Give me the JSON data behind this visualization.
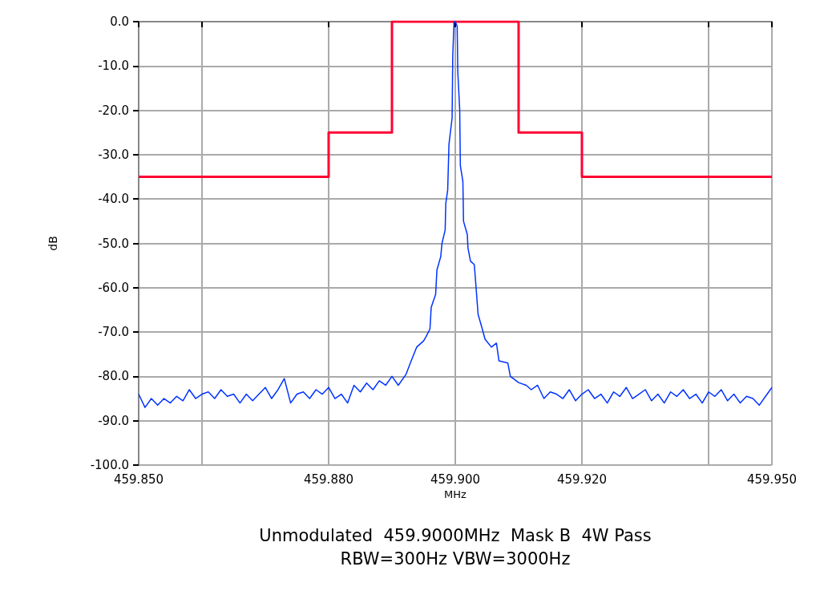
{
  "chart_data": {
    "type": "line",
    "title": "Unmodulated  459.9000MHz  Mask B  4W Pass",
    "subtitle": "RBW=300Hz VBW=3000Hz",
    "xlabel": "MHz",
    "ylabel": "dB",
    "xlim": [
      459.85,
      459.95
    ],
    "ylim": [
      -100,
      0
    ],
    "xticks": [
      {
        "value": 459.85,
        "label": "459.850"
      },
      {
        "value": 459.86,
        "label": null
      },
      {
        "value": 459.88,
        "label": "459.880"
      },
      {
        "value": 459.9,
        "label": "459.900"
      },
      {
        "value": 459.92,
        "label": "459.920"
      },
      {
        "value": 459.94,
        "label": null
      },
      {
        "value": 459.95,
        "label": "459.950"
      }
    ],
    "yticks": [
      {
        "value": 0,
        "label": "0.0"
      },
      {
        "value": -10,
        "label": "-10.0"
      },
      {
        "value": -20,
        "label": "-20.0"
      },
      {
        "value": -30,
        "label": "-30.0"
      },
      {
        "value": -40,
        "label": "-40.0"
      },
      {
        "value": -50,
        "label": "-50.0"
      },
      {
        "value": -60,
        "label": "-60.0"
      },
      {
        "value": -70,
        "label": "-70.0"
      },
      {
        "value": -80,
        "label": "-80.0"
      },
      {
        "value": -90,
        "label": "-90.0"
      },
      {
        "value": -100,
        "label": "-100.0"
      }
    ],
    "grid": true,
    "marker": "none",
    "line_style": "solid",
    "series": [
      {
        "type": "step",
        "color": "#ff0033",
        "x": [
          459.85,
          459.88,
          459.89,
          459.91,
          459.92,
          459.95
        ],
        "values": [
          -35,
          -25,
          0,
          -25,
          -35,
          -35
        ]
      },
      {
        "color": "#0033ff",
        "x": [
          459.85,
          459.851,
          459.852,
          459.853,
          459.854,
          459.855,
          459.856,
          459.857,
          459.858,
          459.859,
          459.86,
          459.861,
          459.862,
          459.863,
          459.864,
          459.865,
          459.866,
          459.867,
          459.868,
          459.869,
          459.87,
          459.871,
          459.872,
          459.873,
          459.874,
          459.875,
          459.876,
          459.877,
          459.878,
          459.879,
          459.88,
          459.881,
          459.882,
          459.883,
          459.884,
          459.885,
          459.886,
          459.887,
          459.888,
          459.889,
          459.89,
          459.891,
          459.8922,
          459.8929,
          459.8939,
          459.895,
          459.8954,
          459.896,
          459.8962,
          459.8969,
          459.8971,
          459.8977,
          459.8979,
          459.8984,
          459.8985,
          459.8988,
          459.899,
          459.8995,
          459.8996,
          459.8998,
          459.9,
          459.9003,
          459.9004,
          459.9007,
          459.9008,
          459.9012,
          459.9013,
          459.9019,
          459.902,
          459.9024,
          459.903,
          459.9032,
          459.9036,
          459.9042,
          459.9047,
          459.9057,
          459.9065,
          459.9069,
          459.9083,
          459.9087,
          459.91,
          459.9112,
          459.912,
          459.913,
          459.914,
          459.915,
          459.916,
          459.917,
          459.918,
          459.919,
          459.92,
          459.921,
          459.922,
          459.923,
          459.924,
          459.925,
          459.926,
          459.927,
          459.928,
          459.929,
          459.93,
          459.931,
          459.932,
          459.933,
          459.934,
          459.935,
          459.936,
          459.937,
          459.938,
          459.939,
          459.94,
          459.941,
          459.942,
          459.943,
          459.944,
          459.945,
          459.946,
          459.947,
          459.948,
          459.949,
          459.95
        ],
        "values": [
          -84,
          -87,
          -85,
          -86.5,
          -85,
          -86,
          -84.5,
          -85.5,
          -83,
          -85,
          -84,
          -83.5,
          -85,
          -83,
          -84.5,
          -84,
          -86,
          -84,
          -85.5,
          -84,
          -82.5,
          -85,
          -83,
          -80.5,
          -86,
          -84,
          -83.5,
          -85,
          -83,
          -84,
          -82.5,
          -85,
          -84,
          -86,
          -82,
          -83.5,
          -81.5,
          -83,
          -81,
          -82,
          -80,
          -82,
          -79.6,
          -77,
          -73.4,
          -72,
          -71,
          -69.3,
          -64.4,
          -61.5,
          -56,
          -53,
          -50,
          -47,
          -41,
          -38,
          -27.7,
          -21.7,
          -7.8,
          0,
          0,
          -1,
          -11.4,
          -19.9,
          -32.5,
          -36,
          -45,
          -48,
          -51,
          -54,
          -54.8,
          -58.4,
          -66,
          -69,
          -71.6,
          -73.4,
          -72.5,
          -76.5,
          -77,
          -80,
          -81.4,
          -82,
          -83,
          -82,
          -85,
          -83.5,
          -84,
          -85,
          -83,
          -85.5,
          -84,
          -83,
          -85,
          -84,
          -86,
          -83.5,
          -84.5,
          -82.5,
          -85,
          -84,
          -83,
          -85.5,
          -84,
          -86,
          -83.5,
          -84.5,
          -83,
          -85,
          -84,
          -86,
          -83.5,
          -84.5,
          -83,
          -85.5,
          -84,
          -86,
          -84.5,
          -85,
          -86.5,
          -84.5,
          -82.5
        ]
      }
    ]
  }
}
